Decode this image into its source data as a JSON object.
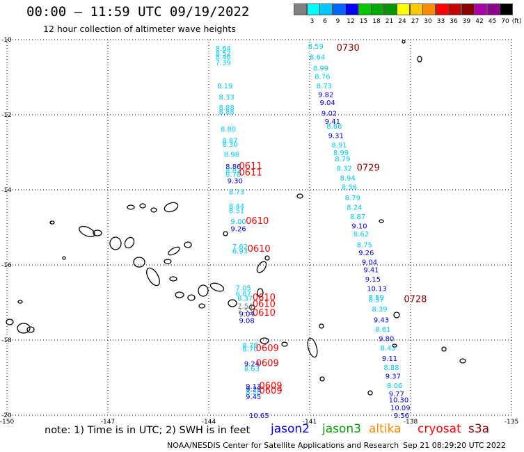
{
  "header": {
    "title": "00:00 – 11:59 UTC 09/19/2022",
    "subtitle": "12 hour collection of altimeter wave heights"
  },
  "colorbar": {
    "swatches": [
      {
        "color": "#808080",
        "label": ""
      },
      {
        "color": "#00ffff",
        "label": "3"
      },
      {
        "color": "#00c8ff",
        "label": "6"
      },
      {
        "color": "#0064ff",
        "label": "9"
      },
      {
        "color": "#0000ff",
        "label": "12"
      },
      {
        "color": "#00c800",
        "label": "15"
      },
      {
        "color": "#00aa00",
        "label": "18"
      },
      {
        "color": "#009600",
        "label": "21"
      },
      {
        "color": "#ffff00",
        "label": "24"
      },
      {
        "color": "#ffc800",
        "label": "27"
      },
      {
        "color": "#ff8c00",
        "label": "30"
      },
      {
        "color": "#ff0000",
        "label": "33"
      },
      {
        "color": "#c80000",
        "label": "36"
      },
      {
        "color": "#8c0000",
        "label": "39"
      },
      {
        "color": "#aa00aa",
        "label": "42"
      },
      {
        "color": "#8c008c",
        "label": "45"
      },
      {
        "color": "#000000",
        "label": "70"
      }
    ],
    "unit": "(ft)"
  },
  "axes": {
    "lat_labels": [
      "-10",
      "-12",
      "-14",
      "-16",
      "-18",
      "-20"
    ],
    "lat_values": [
      -10,
      -12,
      -14,
      -16,
      -18,
      -20
    ],
    "lon_labels": [
      "-150",
      "-147",
      "-144",
      "-141",
      "-138",
      "-135"
    ],
    "lon_values": [
      -150,
      -147,
      -144,
      -141,
      -138,
      -135
    ],
    "lon_range": [
      -150,
      -135
    ],
    "lat_range": [
      -20,
      -10
    ]
  },
  "map_data": {
    "time_labels": [
      {
        "text": "0730",
        "lon": -140.2,
        "lat": -10.22,
        "color": "#8c0000"
      },
      {
        "text": "0729",
        "lon": -139.6,
        "lat": -13.42,
        "color": "#8c0000"
      },
      {
        "text": "0728",
        "lon": -138.2,
        "lat": -16.92,
        "color": "#8c0000"
      },
      {
        "text": "0611",
        "lon": -143.1,
        "lat": -13.37,
        "color": "#ff0000"
      },
      {
        "text": "0611",
        "lon": -143.1,
        "lat": -13.55,
        "color": "#ff0000"
      },
      {
        "text": "0610",
        "lon": -142.9,
        "lat": -14.83,
        "color": "#ff0000"
      },
      {
        "text": "0610",
        "lon": -142.85,
        "lat": -15.57,
        "color": "#ff0000"
      },
      {
        "text": "0610",
        "lon": -142.7,
        "lat": -16.87,
        "color": "#ff0000"
      },
      {
        "text": "0610",
        "lon": -142.7,
        "lat": -17.05,
        "color": "#ff0000"
      },
      {
        "text": "0610",
        "lon": -142.7,
        "lat": -17.28,
        "color": "#ff0000"
      },
      {
        "text": "0609",
        "lon": -142.6,
        "lat": -18.22,
        "color": "#ff0000"
      },
      {
        "text": "0609",
        "lon": -142.6,
        "lat": -18.62,
        "color": "#ff0000"
      },
      {
        "text": "0609",
        "lon": -142.5,
        "lat": -19.22,
        "color": "#ff0000"
      },
      {
        "text": "0609",
        "lon": -142.5,
        "lat": -19.35,
        "color": "#ff0000"
      }
    ],
    "swh_values": [
      {
        "text": "8.64",
        "lon": -143.8,
        "lat": -10.22,
        "color": "#00c8ff"
      },
      {
        "text": "8.52",
        "lon": -143.8,
        "lat": -10.35,
        "color": "#00c8ff"
      },
      {
        "text": "8.46",
        "lon": -143.8,
        "lat": -10.45,
        "color": "#00c8ff"
      },
      {
        "text": "7.39",
        "lon": -143.8,
        "lat": -10.6,
        "color": "#00c8ff"
      },
      {
        "text": "8.19",
        "lon": -143.75,
        "lat": -11.22,
        "color": "#00c8ff"
      },
      {
        "text": "8.33",
        "lon": -143.7,
        "lat": -11.52,
        "color": "#00c8ff"
      },
      {
        "text": "8.88",
        "lon": -143.7,
        "lat": -11.8,
        "color": "#00c8ff"
      },
      {
        "text": "8.88",
        "lon": -143.7,
        "lat": -11.92,
        "color": "#00c8ff"
      },
      {
        "text": "8.80",
        "lon": -143.65,
        "lat": -12.37,
        "color": "#00c8ff"
      },
      {
        "text": "8.87",
        "lon": -143.6,
        "lat": -12.68,
        "color": "#00c8ff"
      },
      {
        "text": "8.30",
        "lon": -143.6,
        "lat": -12.78,
        "color": "#00c8ff"
      },
      {
        "text": "8.98",
        "lon": -143.55,
        "lat": -13.05,
        "color": "#00c8ff"
      },
      {
        "text": "8.86",
        "lon": -143.5,
        "lat": -13.37,
        "color": "#0000ff"
      },
      {
        "text": "8.82",
        "lon": -143.5,
        "lat": -13.47,
        "color": "#00c8ff"
      },
      {
        "text": "8.78",
        "lon": -143.5,
        "lat": -13.57,
        "color": "#00c8ff"
      },
      {
        "text": "9.30",
        "lon": -143.45,
        "lat": -13.75,
        "color": "#0000ff"
      },
      {
        "text": "8.73",
        "lon": -143.4,
        "lat": -14.05,
        "color": "#00c8ff"
      },
      {
        "text": "8.44",
        "lon": -143.4,
        "lat": -14.43,
        "color": "#00c8ff"
      },
      {
        "text": "8.51",
        "lon": -143.4,
        "lat": -14.55,
        "color": "#00c8ff"
      },
      {
        "text": "9.00",
        "lon": -143.35,
        "lat": -14.83,
        "color": "#00c8ff"
      },
      {
        "text": "9.26",
        "lon": -143.35,
        "lat": -15.03,
        "color": "#0000ff"
      },
      {
        "text": "7.62",
        "lon": -143.3,
        "lat": -15.5,
        "color": "#00c8ff"
      },
      {
        "text": "6.93",
        "lon": -143.3,
        "lat": -15.62,
        "color": "#00c8ff"
      },
      {
        "text": "7.05",
        "lon": -143.2,
        "lat": -16.6,
        "color": "#00c8ff"
      },
      {
        "text": "6.87",
        "lon": -143.2,
        "lat": -16.75,
        "color": "#00c8ff"
      },
      {
        "text": "8.37",
        "lon": -143.15,
        "lat": -16.88,
        "color": "#00c8ff"
      },
      {
        "text": "7.54",
        "lon": -143.15,
        "lat": -17.08,
        "color": "#808080"
      },
      {
        "text": "7.53",
        "lon": -143.15,
        "lat": -17.2,
        "color": "#808080"
      },
      {
        "text": "9.04",
        "lon": -143.1,
        "lat": -17.3,
        "color": "#0000ff"
      },
      {
        "text": "9.08",
        "lon": -143.1,
        "lat": -17.47,
        "color": "#0000ff"
      },
      {
        "text": "8.78",
        "lon": -143.0,
        "lat": -18.13,
        "color": "#00c8ff"
      },
      {
        "text": "8.70",
        "lon": -143.0,
        "lat": -18.23,
        "color": "#00c8ff"
      },
      {
        "text": "9.24",
        "lon": -142.95,
        "lat": -18.62,
        "color": "#0000ff"
      },
      {
        "text": "8.63",
        "lon": -142.95,
        "lat": -18.75,
        "color": "#00c8ff"
      },
      {
        "text": "9.13",
        "lon": -142.9,
        "lat": -19.22,
        "color": "#0000ff"
      },
      {
        "text": "9.29",
        "lon": -142.9,
        "lat": -19.3,
        "color": "#0000ff"
      },
      {
        "text": "8.28",
        "lon": -142.9,
        "lat": -19.38,
        "color": "#00c8ff"
      },
      {
        "text": "9.45",
        "lon": -142.9,
        "lat": -19.5,
        "color": "#0000ff"
      },
      {
        "text": "10.65",
        "lon": -142.8,
        "lat": -20.0,
        "color": "#0000ff"
      },
      {
        "text": "8.59",
        "lon": -141.05,
        "lat": -10.17,
        "color": "#00c8ff"
      },
      {
        "text": "8.64",
        "lon": -141.0,
        "lat": -10.45,
        "color": "#00c8ff"
      },
      {
        "text": "8.99",
        "lon": -140.9,
        "lat": -10.75,
        "color": "#00c8ff"
      },
      {
        "text": "8.76",
        "lon": -140.85,
        "lat": -10.97,
        "color": "#00c8ff"
      },
      {
        "text": "8.73",
        "lon": -140.8,
        "lat": -11.22,
        "color": "#00c8ff"
      },
      {
        "text": "9.82",
        "lon": -140.75,
        "lat": -11.45,
        "color": "#0000ff"
      },
      {
        "text": "9.04",
        "lon": -140.7,
        "lat": -11.67,
        "color": "#0000ff"
      },
      {
        "text": "9.02",
        "lon": -140.65,
        "lat": -11.95,
        "color": "#0000ff"
      },
      {
        "text": "9.41",
        "lon": -140.55,
        "lat": -12.17,
        "color": "#0000ff"
      },
      {
        "text": "8.86",
        "lon": -140.5,
        "lat": -12.3,
        "color": "#00c8ff"
      },
      {
        "text": "9.31",
        "lon": -140.45,
        "lat": -12.55,
        "color": "#0000ff"
      },
      {
        "text": "8.91",
        "lon": -140.35,
        "lat": -12.8,
        "color": "#00c8ff"
      },
      {
        "text": "8.99",
        "lon": -140.3,
        "lat": -13.0,
        "color": "#00c8ff"
      },
      {
        "text": "8.79",
        "lon": -140.25,
        "lat": -13.17,
        "color": "#00c8ff"
      },
      {
        "text": "8.32",
        "lon": -140.2,
        "lat": -13.42,
        "color": "#00c8ff"
      },
      {
        "text": "8.94",
        "lon": -140.1,
        "lat": -13.68,
        "color": "#00c8ff"
      },
      {
        "text": "8.56",
        "lon": -140.05,
        "lat": -13.92,
        "color": "#00c8ff"
      },
      {
        "text": "8.79",
        "lon": -139.95,
        "lat": -14.2,
        "color": "#00c8ff"
      },
      {
        "text": "8.24",
        "lon": -139.9,
        "lat": -14.45,
        "color": "#00c8ff"
      },
      {
        "text": "8.87",
        "lon": -139.8,
        "lat": -14.7,
        "color": "#00c8ff"
      },
      {
        "text": "9.10",
        "lon": -139.75,
        "lat": -14.95,
        "color": "#0000ff"
      },
      {
        "text": "8.62",
        "lon": -139.7,
        "lat": -15.17,
        "color": "#00c8ff"
      },
      {
        "text": "8.75",
        "lon": -139.6,
        "lat": -15.45,
        "color": "#00c8ff"
      },
      {
        "text": "9.26",
        "lon": -139.55,
        "lat": -15.67,
        "color": "#0000ff"
      },
      {
        "text": "9.04",
        "lon": -139.45,
        "lat": -15.92,
        "color": "#0000ff"
      },
      {
        "text": "9.41",
        "lon": -139.4,
        "lat": -16.12,
        "color": "#0000ff"
      },
      {
        "text": "9.15",
        "lon": -139.35,
        "lat": -16.37,
        "color": "#0000ff"
      },
      {
        "text": "10.13",
        "lon": -139.3,
        "lat": -16.62,
        "color": "#0000ff"
      },
      {
        "text": "8.59",
        "lon": -139.25,
        "lat": -16.85,
        "color": "#00c8ff"
      },
      {
        "text": "8.57",
        "lon": -139.25,
        "lat": -16.92,
        "color": "#00c8ff"
      },
      {
        "text": "8.39",
        "lon": -139.15,
        "lat": -17.17,
        "color": "#00c8ff"
      },
      {
        "text": "9.43",
        "lon": -139.1,
        "lat": -17.45,
        "color": "#0000ff"
      },
      {
        "text": "8.61",
        "lon": -139.05,
        "lat": -17.7,
        "color": "#00c8ff"
      },
      {
        "text": "9.80",
        "lon": -138.95,
        "lat": -17.95,
        "color": "#0000ff"
      },
      {
        "text": "8.43",
        "lon": -138.9,
        "lat": -18.2,
        "color": "#00c8ff"
      },
      {
        "text": "9.11",
        "lon": -138.85,
        "lat": -18.48,
        "color": "#0000ff"
      },
      {
        "text": "8.88",
        "lon": -138.8,
        "lat": -18.72,
        "color": "#00c8ff"
      },
      {
        "text": "9.37",
        "lon": -138.75,
        "lat": -18.95,
        "color": "#0000ff"
      },
      {
        "text": "8.06",
        "lon": -138.7,
        "lat": -19.2,
        "color": "#00c8ff"
      },
      {
        "text": "9.77",
        "lon": -138.65,
        "lat": -19.43,
        "color": "#0000ff"
      },
      {
        "text": "10.30",
        "lon": -138.65,
        "lat": -19.58,
        "color": "#0000ff"
      },
      {
        "text": "10.09",
        "lon": -138.6,
        "lat": -19.8,
        "color": "#0000ff"
      },
      {
        "text": "9.56",
        "lon": -138.5,
        "lat": -20.0,
        "color": "#0000ff"
      }
    ]
  },
  "footer": {
    "note": "note: 1) Time is in UTC; 2) SWH is in feet",
    "satellites": [
      {
        "name": "jason2",
        "color": "#0000ff"
      },
      {
        "name": "jason3",
        "color": "#00a000"
      },
      {
        "name": "altika",
        "color": "#ff8c00"
      },
      {
        "name": "cryosat",
        "color": "#ff0000"
      },
      {
        "name": "s3a",
        "color": "#8c0000"
      }
    ],
    "credit": "NOAA/NESDIS Center for Satellite Applications and Research",
    "timestamp": "Sep 21 08:29:20 UTC 2022"
  }
}
